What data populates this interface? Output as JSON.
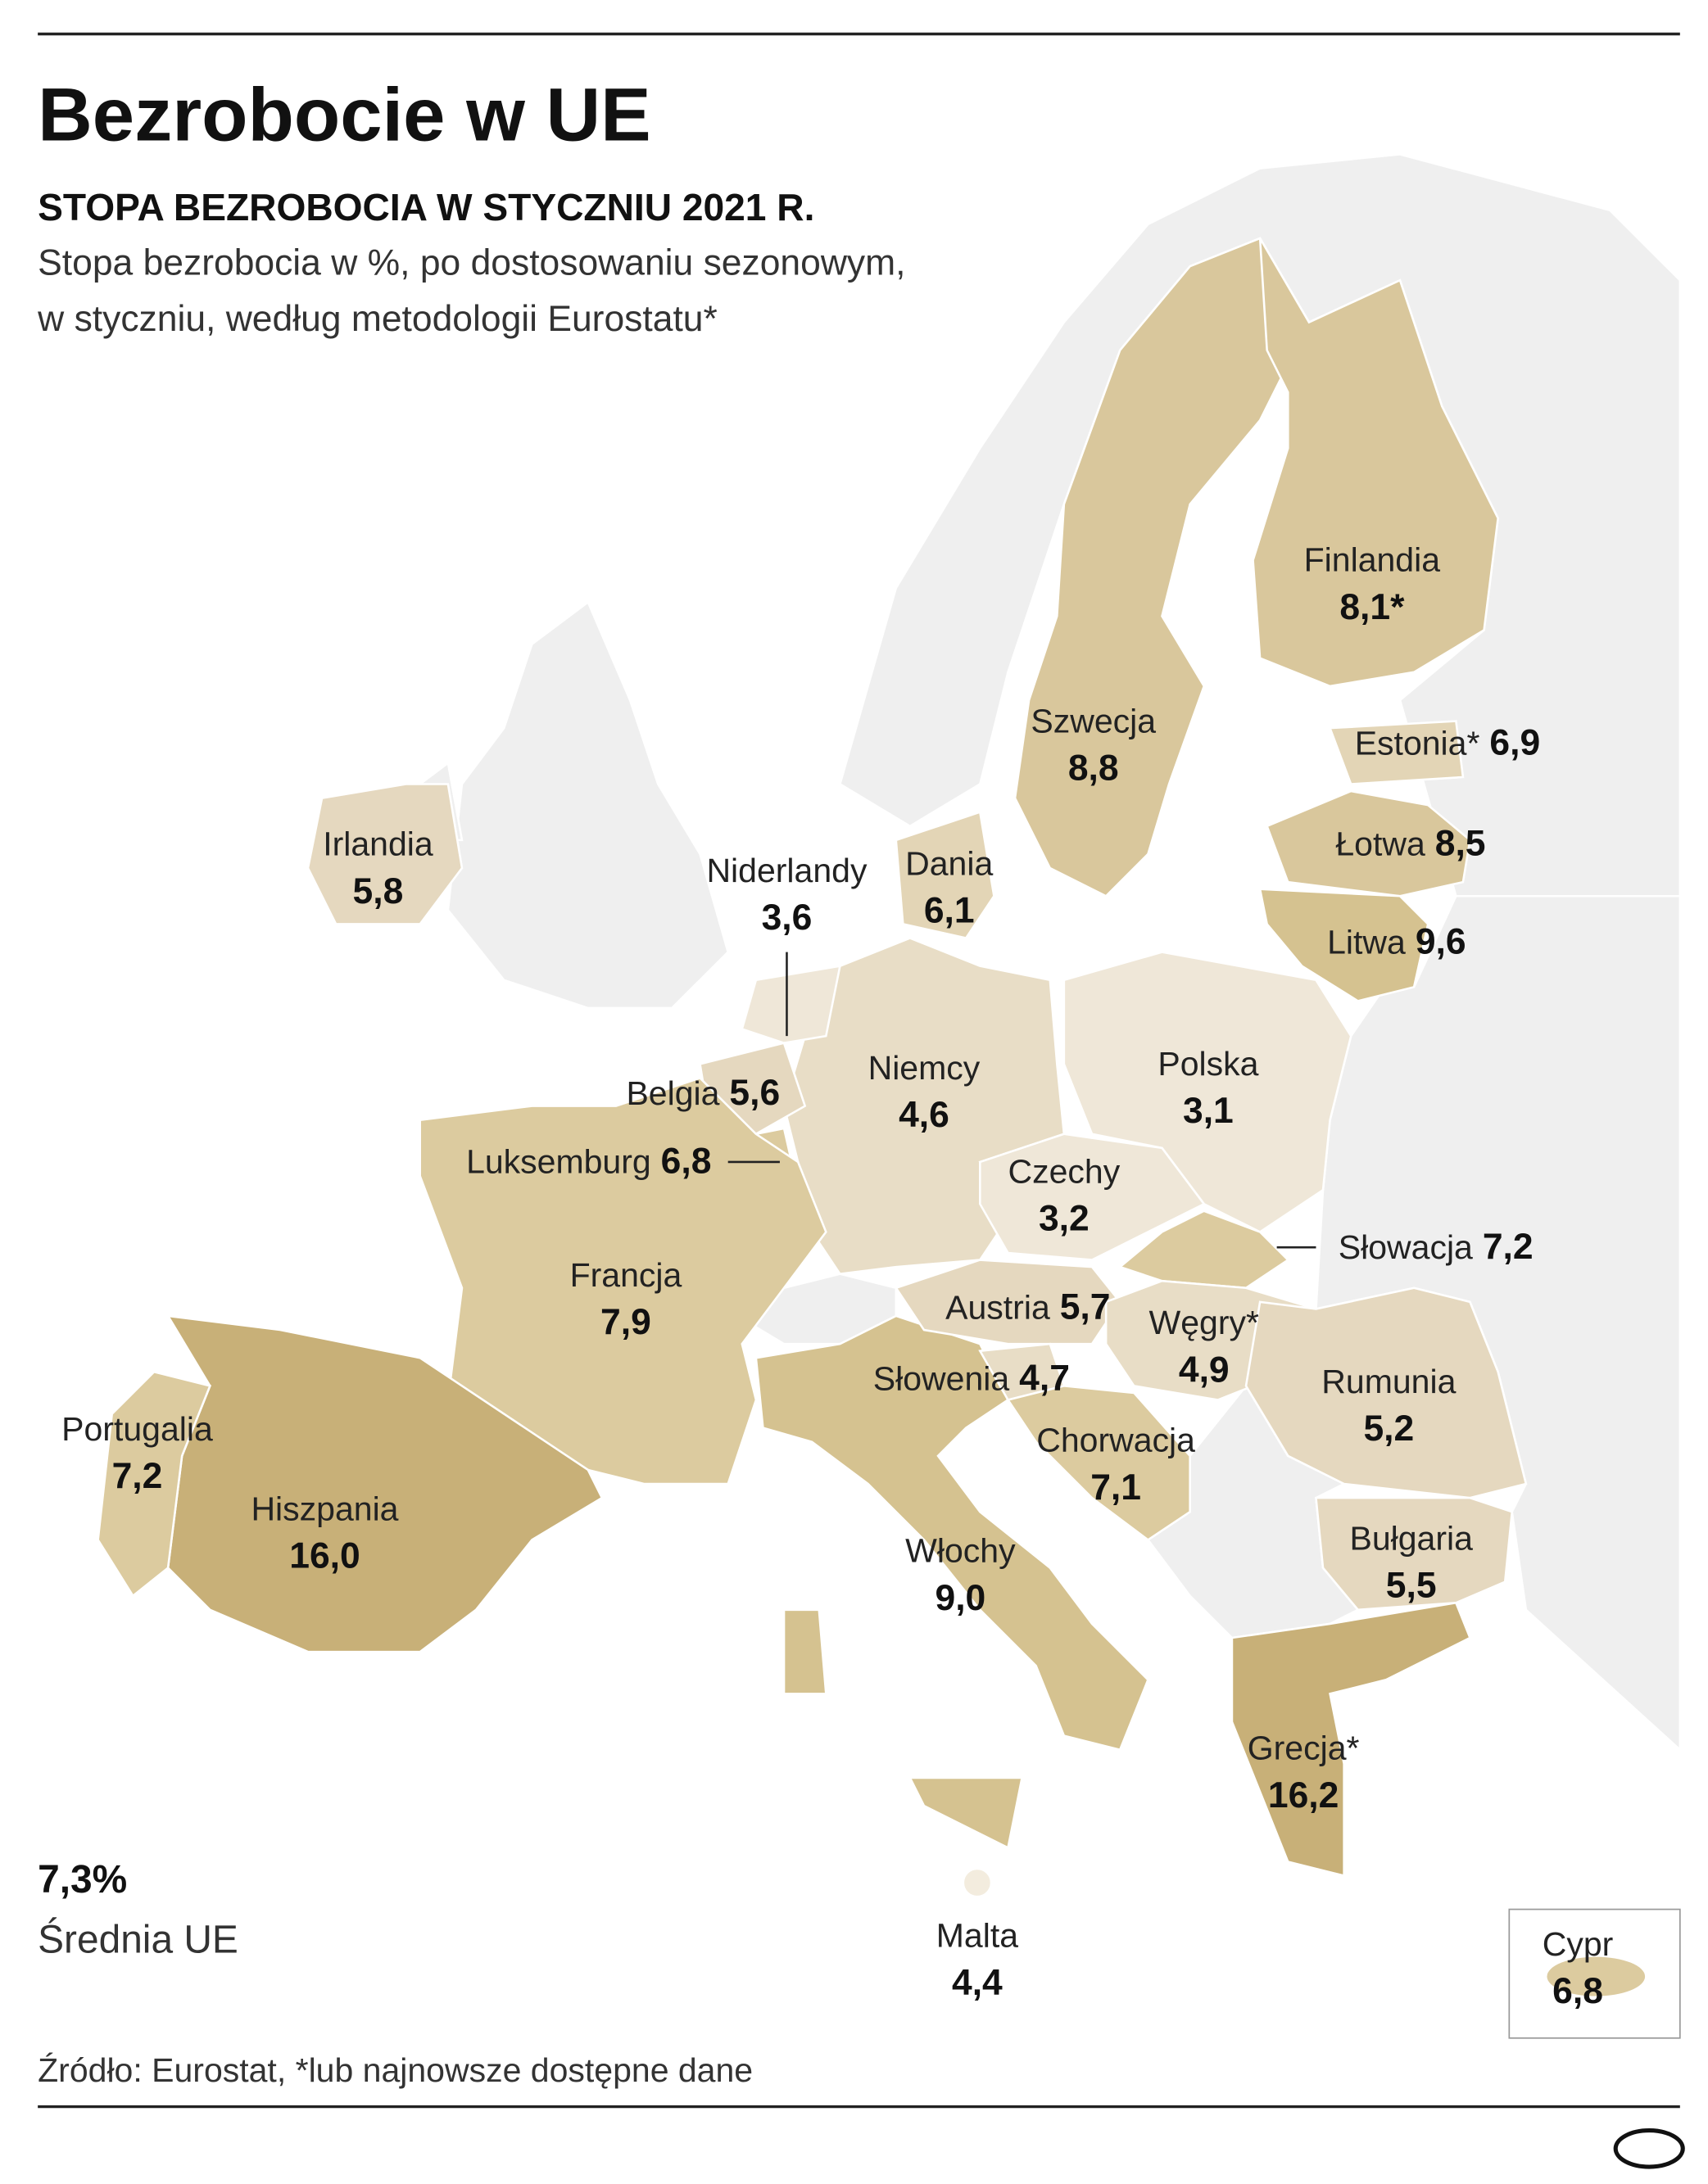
{
  "header": {
    "title": "Bezrobocie w UE",
    "subtitle": "STOPA BEZROBOCIA W STYCZNIU 2021 R.",
    "description": [
      "Stopa bezrobocia w %, po dostosowaniu sezonowym,",
      "w styczniu, według metodologii Eurostatu*"
    ]
  },
  "countries": [
    {
      "name": "Finlandia",
      "value": "8,1*"
    },
    {
      "name": "Szwecja",
      "value": "8,8"
    },
    {
      "name": "Estonia*",
      "value": "6,9"
    },
    {
      "name": "Łotwa",
      "value": "8,5"
    },
    {
      "name": "Litwa",
      "value": "9,6"
    },
    {
      "name": "Irlandia",
      "value": "5,8"
    },
    {
      "name": "Niderlandy",
      "value": "3,6"
    },
    {
      "name": "Dania",
      "value": "6,1"
    },
    {
      "name": "Belgia",
      "value": "5,6"
    },
    {
      "name": "Niemcy",
      "value": "4,6"
    },
    {
      "name": "Polska",
      "value": "3,1"
    },
    {
      "name": "Luksemburg",
      "value": "6,8"
    },
    {
      "name": "Czechy",
      "value": "3,2"
    },
    {
      "name": "Słowacja",
      "value": "7,2"
    },
    {
      "name": "Francja",
      "value": "7,9"
    },
    {
      "name": "Austria",
      "value": "5,7"
    },
    {
      "name": "Węgry*",
      "value": "4,9"
    },
    {
      "name": "Słowenia",
      "value": "4,7"
    },
    {
      "name": "Rumunia",
      "value": "5,2"
    },
    {
      "name": "Portugalia",
      "value": "7,2"
    },
    {
      "name": "Chorwacja",
      "value": "7,1"
    },
    {
      "name": "Hiszpania",
      "value": "16,0"
    },
    {
      "name": "Bułgaria",
      "value": "5,5"
    },
    {
      "name": "Włochy",
      "value": "9,0"
    },
    {
      "name": "Grecja*",
      "value": "16,2"
    },
    {
      "name": "Malta",
      "value": "4,4"
    },
    {
      "name": "Cypr",
      "value": "6,8"
    }
  ],
  "average": {
    "value": "7,3%",
    "label": "Średnia UE"
  },
  "source": "Źródło: Eurostat, *lub najnowsze dostępne dane"
}
